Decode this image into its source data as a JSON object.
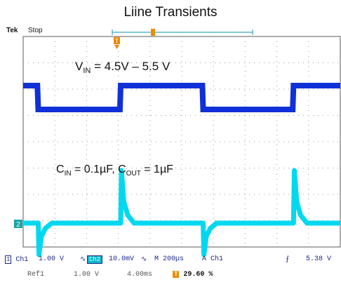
{
  "title": "Liine Transients",
  "scope": {
    "brand": "Tek",
    "status": "Stop",
    "annotation_vin_base": "V",
    "annotation_vin_sub": "IN",
    "annotation_vin_value": " = 4.5V – 5.5 V",
    "annotation_c_text_1": "C",
    "annotation_c_sub_1": "IN",
    "annotation_c_text_2": " = 0.1µF, C",
    "annotation_c_sub_2": "OUT",
    "annotation_c_text_3": " = 1µF",
    "ch2_marker": "2",
    "row1": {
      "ch1_id": "1",
      "ch1_label": "Ch1",
      "ch1_scale": "1.00 V",
      "ch2_label": "Ch2",
      "ch2_scale": "10.0mV",
      "timebase": "M 200µs",
      "trig_source": "A  Ch1",
      "trig_slope": "⨍",
      "trig_level": "5.38 V"
    },
    "row2": {
      "ref_label": "Ref1",
      "ref_scale": "1.00 V",
      "ref_time": "4.00ms",
      "trig_marker": "T",
      "trig_position": "29.60 %"
    }
  },
  "chart_data": {
    "type": "line",
    "title": "Liine Transients",
    "x_units": "µs",
    "xlim": [
      0,
      2000
    ],
    "divisions": {
      "x": 10,
      "y": 8
    },
    "time_per_div": "200µs",
    "series": [
      {
        "name": "Ch1",
        "color": "#1030d8",
        "units": "V",
        "x": [
          0,
          90,
          95,
          610,
          615,
          1130,
          1135,
          1700,
          1705,
          2000
        ],
        "y": [
          5.5,
          5.5,
          4.5,
          4.5,
          5.5,
          5.5,
          4.5,
          4.5,
          5.5,
          5.5
        ]
      },
      {
        "name": "Ch2",
        "color": "#00d8f0",
        "units": "mV",
        "baseline": 0,
        "x": [
          0,
          95,
          100,
          115,
          140,
          180,
          615,
          620,
          635,
          660,
          700,
          1135,
          1140,
          1155,
          1180,
          1220,
          1705,
          1710,
          1725,
          1750,
          1790,
          2000
        ],
        "y": [
          0,
          0,
          -12,
          -5,
          -2,
          0,
          0,
          20,
          8,
          3,
          0,
          0,
          -12,
          -5,
          -2,
          0,
          0,
          20,
          8,
          3,
          0,
          0
        ]
      }
    ]
  }
}
